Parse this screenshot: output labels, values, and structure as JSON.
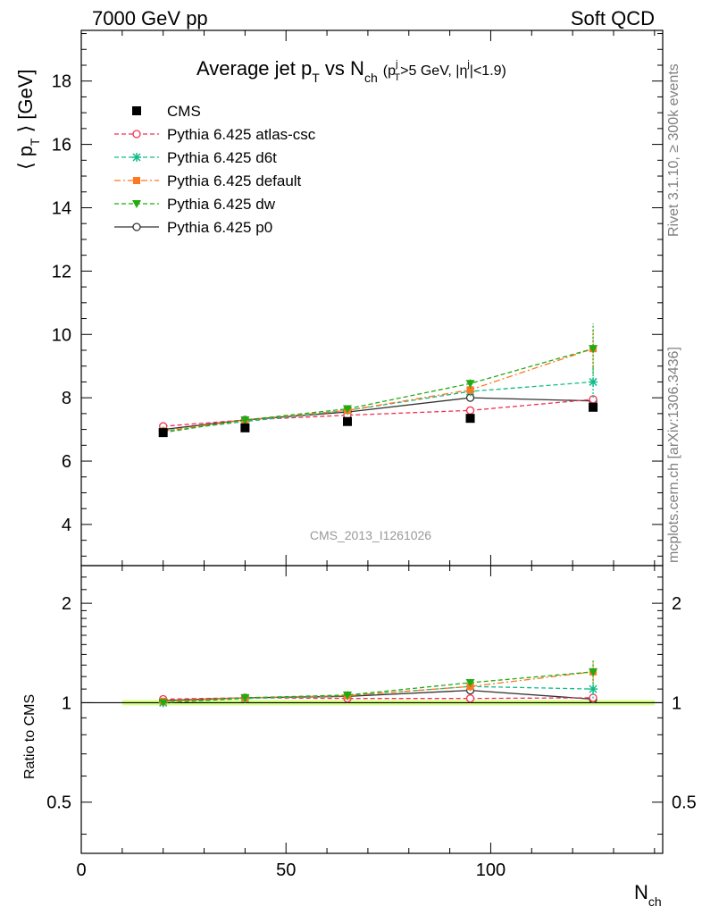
{
  "header": {
    "energy_label": "7000 GeV pp",
    "process_label": "Soft QCD"
  },
  "side_labels": {
    "rivet": "Rivet 3.1.10, ≥ 300k events",
    "mcplots": "mcplots.cern.ch [arXiv:1306.3436]"
  },
  "title": {
    "main_a": "Average jet p",
    "main_a_sub": "T",
    "main_b": " vs N",
    "main_b_sub": "ch",
    "cut_a": "(p",
    "cut_a_sup": "j",
    "cut_a_sub": "T",
    "cut_b": ">5 GeV, |η",
    "cut_b_sup": "j",
    "cut_c": "|<1.9)"
  },
  "watermark": "CMS_2013_I1261026",
  "chart_data": [
    {
      "type": "line",
      "panel": "main",
      "ylabel": "⟨ p",
      "ylabel_sub": "T",
      "ylabel_tail": " ⟩ [GeV]",
      "xlim": [
        0,
        142
      ],
      "ylim": [
        2.7,
        19.6
      ],
      "yticks": [
        4,
        6,
        8,
        10,
        12,
        14,
        16,
        18
      ],
      "x": [
        20,
        40,
        65,
        95,
        125
      ],
      "series": [
        {
          "name": "CMS",
          "color": "#000000",
          "style": "data",
          "marker": "square",
          "values": [
            6.9,
            7.05,
            7.25,
            7.35,
            7.7
          ]
        },
        {
          "name": "Pythia 6.425 atlas-csc",
          "color": "#ee3355",
          "style": "dashed",
          "marker": "open-circle",
          "values": [
            7.1,
            7.3,
            7.45,
            7.6,
            7.95
          ]
        },
        {
          "name": "Pythia 6.425 d6t",
          "color": "#11bb88",
          "style": "dashed",
          "marker": "star",
          "values": [
            6.95,
            7.25,
            7.6,
            8.2,
            8.5
          ],
          "errors": [
            0.05,
            0.05,
            0.08,
            0.15,
            0.5
          ]
        },
        {
          "name": "Pythia 6.425 default",
          "color": "#ff7722",
          "style": "dashdot",
          "marker": "filled-square",
          "values": [
            6.95,
            7.3,
            7.6,
            8.25,
            9.55
          ],
          "errors": [
            0.05,
            0.05,
            0.08,
            0.15,
            0.6
          ]
        },
        {
          "name": "Pythia 6.425 dw",
          "color": "#22aa11",
          "style": "dashed",
          "marker": "filled-triangle-down",
          "values": [
            6.9,
            7.3,
            7.65,
            8.45,
            9.55
          ],
          "errors": [
            0.05,
            0.05,
            0.08,
            0.15,
            0.8
          ]
        },
        {
          "name": "Pythia 6.425 p0",
          "color": "#333333",
          "style": "solid",
          "marker": "open-circle",
          "values": [
            7.0,
            7.3,
            7.55,
            8.0,
            7.9
          ]
        }
      ]
    },
    {
      "type": "line",
      "panel": "ratio",
      "xlabel": "N",
      "xlabel_sub": "ch",
      "ylabel": "Ratio to CMS",
      "log_y": true,
      "xlim": [
        0,
        142
      ],
      "ylim": [
        0.35,
        2.6
      ],
      "yticks": [
        0.5,
        1,
        2
      ],
      "ytick_labels": [
        "0.5",
        "1",
        "2"
      ],
      "xticks": [
        0,
        50,
        100
      ],
      "xtick_labels": [
        "0",
        "50",
        "100"
      ],
      "band": {
        "color": "#ccff66",
        "x": [
          10,
          140
        ],
        "halfwidth": 0.018
      },
      "x": [
        20,
        40,
        65,
        95,
        125
      ],
      "series": [
        {
          "name": "Pythia 6.425 atlas-csc",
          "values": [
            1.025,
            1.035,
            1.03,
            1.03,
            1.035
          ]
        },
        {
          "name": "Pythia 6.425 d6t",
          "values": [
            1.0,
            1.03,
            1.05,
            1.12,
            1.1
          ],
          "errors": [
            0.01,
            0.01,
            0.015,
            0.03,
            0.07
          ]
        },
        {
          "name": "Pythia 6.425 default",
          "values": [
            1.01,
            1.035,
            1.05,
            1.12,
            1.24
          ],
          "errors": [
            0.01,
            0.01,
            0.015,
            0.03,
            0.08
          ]
        },
        {
          "name": "Pythia 6.425 dw",
          "values": [
            1.0,
            1.035,
            1.055,
            1.15,
            1.24
          ],
          "errors": [
            0.01,
            0.01,
            0.015,
            0.03,
            0.1
          ]
        },
        {
          "name": "Pythia 6.425 p0",
          "values": [
            1.015,
            1.035,
            1.045,
            1.09,
            1.025
          ]
        }
      ]
    }
  ]
}
